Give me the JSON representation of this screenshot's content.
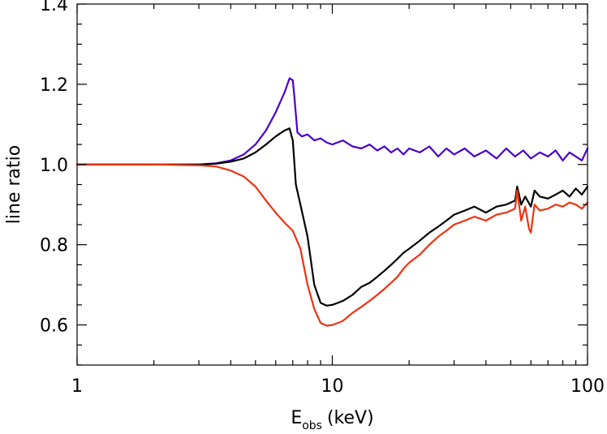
{
  "chart_data": {
    "type": "line",
    "xlabel": "E",
    "xlabel_sub": "obs",
    "xlabel_unit": "(keV)",
    "ylabel": "line ratio",
    "xscale": "log",
    "xlim": [
      1,
      100
    ],
    "ylim": [
      0.5,
      1.4
    ],
    "grid": false,
    "x_ticks": [
      1,
      10,
      100
    ],
    "x_tick_labels": [
      "1",
      "10",
      "100"
    ],
    "y_ticks": [
      0.6,
      0.8,
      1.0,
      1.2,
      1.4
    ],
    "y_tick_labels": [
      "0.6",
      "0.8",
      "1.0",
      "1.2",
      "1.4"
    ],
    "series": [
      {
        "color": "#4a00c8",
        "x": [
          1,
          2,
          3,
          3.5,
          4,
          4.5,
          5,
          5.5,
          6,
          6.5,
          6.8,
          7.0,
          7.1,
          7.3,
          7.6,
          8,
          8.5,
          9,
          9.5,
          10,
          11,
          12,
          13,
          14,
          15,
          16,
          17,
          18,
          19,
          20,
          22,
          24,
          26,
          28,
          30,
          33,
          36,
          40,
          44,
          48,
          52,
          56,
          60,
          65,
          70,
          75,
          80,
          85,
          90,
          95,
          100
        ],
        "y": [
          1.0,
          1.0,
          1.0,
          1.003,
          1.01,
          1.025,
          1.05,
          1.085,
          1.13,
          1.18,
          1.215,
          1.21,
          1.17,
          1.08,
          1.07,
          1.075,
          1.06,
          1.065,
          1.055,
          1.05,
          1.06,
          1.045,
          1.04,
          1.05,
          1.035,
          1.045,
          1.03,
          1.04,
          1.025,
          1.04,
          1.03,
          1.045,
          1.02,
          1.04,
          1.025,
          1.04,
          1.02,
          1.035,
          1.015,
          1.04,
          1.02,
          1.035,
          1.015,
          1.03,
          1.02,
          1.035,
          1.01,
          1.03,
          1.02,
          1.01,
          1.04
        ]
      },
      {
        "color": "#000000",
        "x": [
          1,
          2,
          3,
          3.5,
          4,
          4.5,
          5,
          5.5,
          6,
          6.5,
          6.8,
          7.0,
          7.2,
          7.5,
          8,
          8.5,
          9,
          9.5,
          10,
          10.5,
          11,
          12,
          13,
          14,
          15,
          16,
          17,
          18,
          19,
          20,
          22,
          24,
          26,
          28,
          30,
          33,
          36,
          40,
          44,
          48,
          52,
          53,
          55,
          57,
          60,
          62,
          65,
          70,
          75,
          80,
          85,
          90,
          95,
          100
        ],
        "y": [
          1.0,
          1.0,
          1.0,
          1.002,
          1.007,
          1.015,
          1.03,
          1.05,
          1.07,
          1.085,
          1.09,
          1.06,
          0.95,
          0.9,
          0.82,
          0.7,
          0.655,
          0.648,
          0.65,
          0.655,
          0.66,
          0.675,
          0.695,
          0.705,
          0.72,
          0.735,
          0.75,
          0.765,
          0.78,
          0.79,
          0.81,
          0.83,
          0.845,
          0.86,
          0.875,
          0.885,
          0.895,
          0.88,
          0.895,
          0.9,
          0.91,
          0.945,
          0.9,
          0.92,
          0.895,
          0.935,
          0.92,
          0.915,
          0.925,
          0.935,
          0.92,
          0.94,
          0.925,
          0.945
        ]
      },
      {
        "color": "#ee3311",
        "x": [
          1,
          2,
          3,
          3.5,
          4,
          4.5,
          5,
          5.5,
          6,
          6.5,
          7,
          7.5,
          8,
          8.5,
          9,
          9.5,
          10,
          10.5,
          11,
          12,
          13,
          14,
          15,
          16,
          17,
          18,
          19,
          20,
          22,
          24,
          26,
          28,
          30,
          33,
          36,
          40,
          44,
          48,
          52,
          53,
          55,
          57,
          59,
          60,
          62,
          65,
          70,
          75,
          80,
          85,
          90,
          95,
          100
        ],
        "y": [
          1.0,
          1.0,
          0.998,
          0.995,
          0.985,
          0.97,
          0.945,
          0.91,
          0.88,
          0.855,
          0.835,
          0.79,
          0.7,
          0.64,
          0.605,
          0.598,
          0.6,
          0.605,
          0.61,
          0.63,
          0.645,
          0.66,
          0.675,
          0.69,
          0.705,
          0.72,
          0.74,
          0.755,
          0.775,
          0.8,
          0.82,
          0.835,
          0.85,
          0.86,
          0.87,
          0.86,
          0.875,
          0.88,
          0.89,
          0.935,
          0.86,
          0.895,
          0.84,
          0.83,
          0.9,
          0.885,
          0.89,
          0.9,
          0.895,
          0.905,
          0.9,
          0.89,
          0.905
        ]
      }
    ]
  }
}
